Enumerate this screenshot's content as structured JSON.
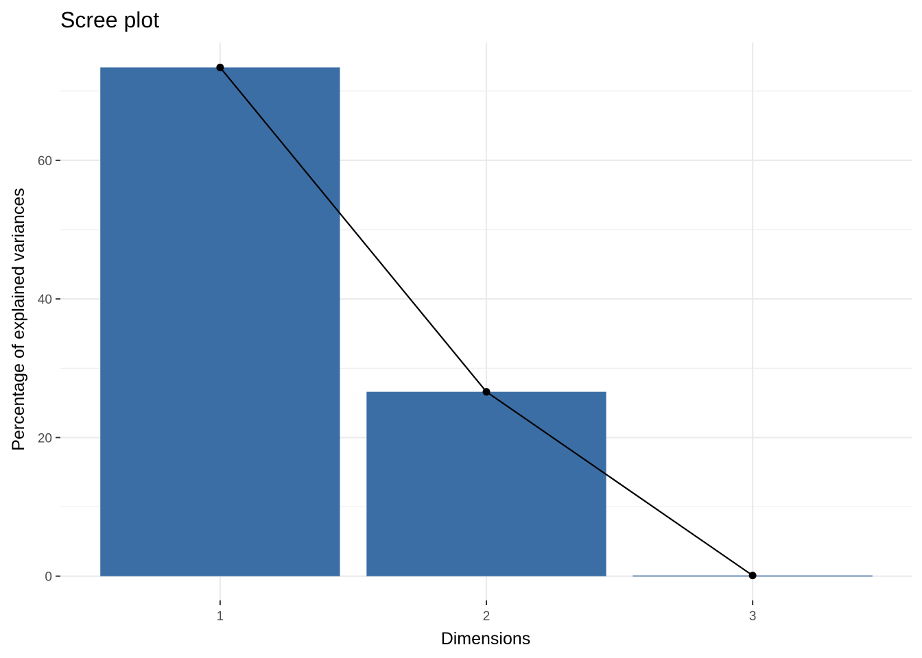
{
  "chart_data": {
    "type": "bar",
    "title": "Scree plot",
    "xlabel": "Dimensions",
    "ylabel": "Percentage of explained variances",
    "categories": [
      "1",
      "2",
      "3"
    ],
    "values": [
      73.4,
      26.6,
      0.1
    ],
    "ylim": [
      -3.5,
      77
    ],
    "y_ticks": [
      0,
      20,
      40,
      60
    ],
    "y_tick_labels": [
      "0",
      "20",
      "40",
      "60"
    ],
    "y_minor_ticks": [
      10,
      30,
      50,
      70
    ],
    "bar_color": "#3b6ea5",
    "line_color": "#000000",
    "grid": true,
    "legend": "none"
  }
}
